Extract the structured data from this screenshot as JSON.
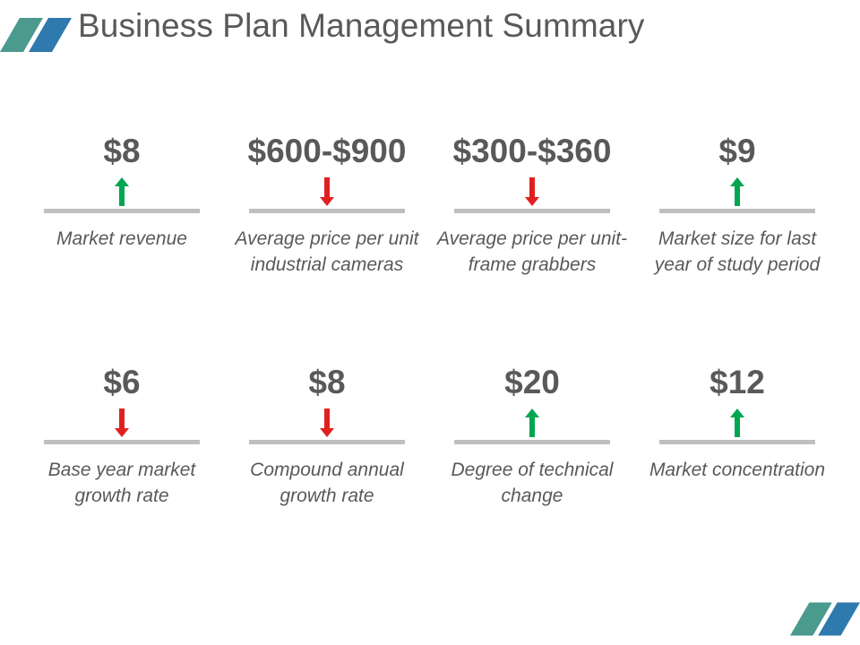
{
  "title": "Business Plan Management Summary",
  "colors": {
    "up": "#00a651",
    "down": "#e02020",
    "accent_teal": "#4a9a8e",
    "accent_blue": "#2e79ad",
    "divider": "#bfbfbf",
    "text": "#595959"
  },
  "metrics": [
    {
      "value": "$8",
      "direction": "up",
      "icon": "arrow-up-icon",
      "label": "Market revenue"
    },
    {
      "value": "$600-$900",
      "direction": "down",
      "icon": "arrow-down-icon",
      "label": "Average price per unit industrial cameras"
    },
    {
      "value": "$300-$360",
      "direction": "down",
      "icon": "arrow-down-icon",
      "label": "Average price per unit-frame grabbers"
    },
    {
      "value": "$9",
      "direction": "up",
      "icon": "arrow-up-icon",
      "label": "Market size for last year of study period"
    },
    {
      "value": "$6",
      "direction": "down",
      "icon": "arrow-down-icon",
      "label": "Base year market growth rate"
    },
    {
      "value": "$8",
      "direction": "down",
      "icon": "arrow-down-icon",
      "label": "Compound annual growth rate"
    },
    {
      "value": "$20",
      "direction": "up",
      "icon": "arrow-up-icon",
      "label": "Degree of technical change"
    },
    {
      "value": "$12",
      "direction": "up",
      "icon": "arrow-up-icon",
      "label": "Market concentration"
    }
  ]
}
